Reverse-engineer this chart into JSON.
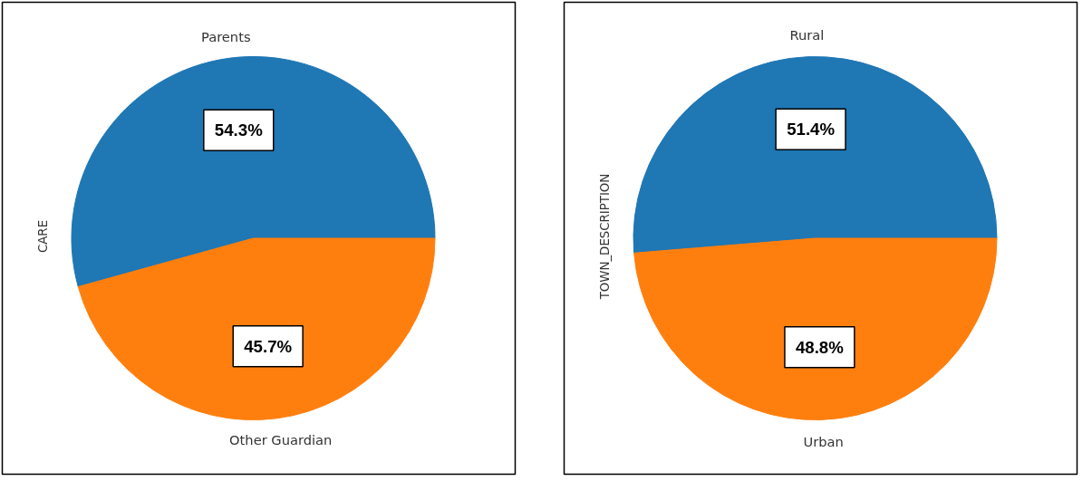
{
  "chart_data": [
    {
      "type": "pie",
      "ylabel": "CARE",
      "categories": [
        "Parents",
        "Other Guardian"
      ],
      "values": [
        54.3,
        45.7
      ],
      "colors": [
        "#1f77b4",
        "#ff7f0e"
      ],
      "value_labels": [
        "54.3%",
        "45.7%"
      ]
    },
    {
      "type": "pie",
      "ylabel": "TOWN_DESCRIPTION",
      "categories": [
        "Rural",
        "Urban"
      ],
      "values": [
        51.4,
        48.8
      ],
      "colors": [
        "#1f77b4",
        "#ff7f0e"
      ],
      "value_labels": [
        "51.4%",
        "48.8%"
      ]
    }
  ]
}
